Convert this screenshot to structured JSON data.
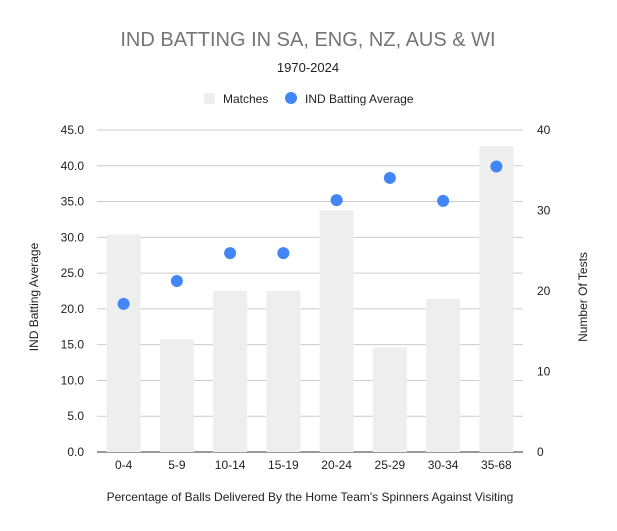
{
  "chart_data": {
    "type": "bar",
    "title": "IND BATTING IN SA, ENG, NZ, AUS & WI",
    "subtitle": "1970-2024",
    "xlabel": "Percentage of Balls Delivered By the Home Team's Spinners Against Visiting",
    "ylabel_left": "IND Batting Average",
    "ylabel_right": "Number Of Tests",
    "categories": [
      "0-4",
      "5-9",
      "10-14",
      "15-19",
      "20-24",
      "25-29",
      "30-34",
      "35-68"
    ],
    "y_left_ticks": [
      "0.0",
      "5.0",
      "10.0",
      "15.0",
      "20.0",
      "25.0",
      "30.0",
      "35.0",
      "40.0",
      "45.0"
    ],
    "y_right_ticks": [
      "0",
      "10",
      "20",
      "30",
      "40"
    ],
    "ylim_left": [
      0,
      45
    ],
    "ylim_right": [
      0,
      40
    ],
    "grid": true,
    "legend_position": "top",
    "series": [
      {
        "name": "Matches",
        "type": "bar",
        "axis": "right",
        "color": "#eeeeee",
        "values": [
          27,
          14,
          20,
          20,
          30,
          13,
          19,
          38
        ]
      },
      {
        "name": "IND Batting Average",
        "type": "scatter",
        "axis": "left",
        "color": "#4285f4",
        "values": [
          20.7,
          23.9,
          27.8,
          27.8,
          35.2,
          38.3,
          35.1,
          39.9
        ]
      }
    ]
  }
}
